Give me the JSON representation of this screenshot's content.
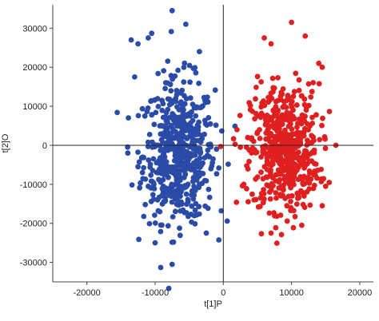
{
  "chart_data": {
    "type": "scatter",
    "xlabel": "t[1]P",
    "ylabel": "t[2]O",
    "xlim": [
      -25000,
      22000
    ],
    "ylim": [
      -35000,
      36000
    ],
    "x_ticks": [
      -20000,
      -10000,
      0,
      10000,
      20000
    ],
    "y_ticks": [
      -30000,
      -20000,
      -10000,
      0,
      10000,
      20000,
      30000
    ],
    "x_tick_labels": [
      "-20000",
      "-10000",
      "0",
      "10000",
      "20000"
    ],
    "y_tick_labels": [
      "-30000",
      "-20000",
      "-10000",
      "0",
      "10000",
      "20000",
      "30000"
    ],
    "zero_lines": true,
    "grid": false,
    "series": [
      {
        "color": "#2b4ba8",
        "center": [
          -6500,
          -2500
        ],
        "spread": [
          2600,
          8500
        ],
        "count": 560,
        "points": [
          {
            "x": -7500,
            "y": 34500
          },
          {
            "x": -10500,
            "y": 28700
          },
          {
            "x": -11000,
            "y": 27500
          },
          {
            "x": -12500,
            "y": 26000
          },
          {
            "x": -13500,
            "y": 27000
          },
          {
            "x": -5500,
            "y": 31000
          },
          {
            "x": -3500,
            "y": 24000
          },
          {
            "x": -13000,
            "y": 17500
          },
          {
            "x": -11500,
            "y": 7500
          },
          {
            "x": -14000,
            "y": -2000
          },
          {
            "x": -12500,
            "y": -5500
          },
          {
            "x": -11000,
            "y": -10500
          },
          {
            "x": -10000,
            "y": -25000
          },
          {
            "x": -7500,
            "y": -30500
          },
          {
            "x": -2500,
            "y": -22500
          },
          {
            "x": -1500,
            "y": -3500
          },
          {
            "x": -1000,
            "y": -1000
          }
        ]
      },
      {
        "color": "#e02020",
        "center": [
          9000,
          -1500
        ],
        "spread": [
          2500,
          7500
        ],
        "count": 560,
        "points": [
          {
            "x": 10000,
            "y": 31500
          },
          {
            "x": 12000,
            "y": 28000
          },
          {
            "x": 6000,
            "y": 27500
          },
          {
            "x": 7000,
            "y": 26000
          },
          {
            "x": 14000,
            "y": 21000
          },
          {
            "x": 14500,
            "y": 20000
          },
          {
            "x": 2000,
            "y": 4000
          },
          {
            "x": 2500,
            "y": -500
          },
          {
            "x": 16500,
            "y": 0
          },
          {
            "x": 15000,
            "y": -10500
          },
          {
            "x": 14500,
            "y": -15500
          },
          {
            "x": 3000,
            "y": -10000
          },
          {
            "x": 7000,
            "y": -22500
          },
          {
            "x": 11500,
            "y": -20500
          },
          {
            "x": 4500,
            "y": -14000
          }
        ]
      }
    ]
  }
}
